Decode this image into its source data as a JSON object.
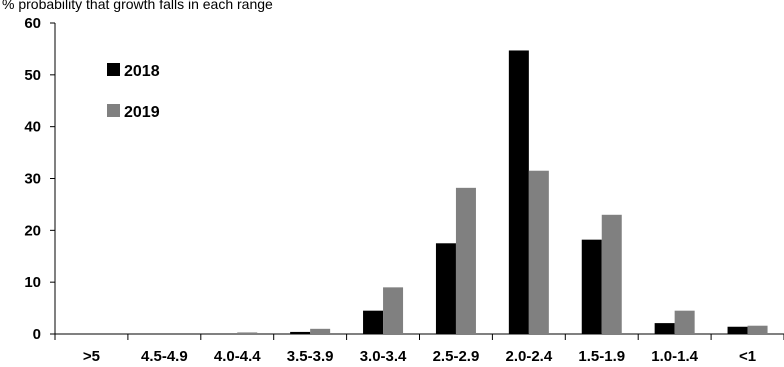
{
  "chart_data": {
    "type": "bar",
    "subtitle": "% probability that growth falls in each range",
    "categories": [
      ">5",
      "4.5-4.9",
      "4.0-4.4",
      "3.5-3.9",
      "3.0-3.4",
      "2.5-2.9",
      "2.0-2.4",
      "1.5-1.9",
      "1.0-1.4",
      "<1"
    ],
    "series": [
      {
        "name": "2018",
        "color": "#000000",
        "values": [
          0,
          0,
          0,
          0.4,
          4.5,
          17.5,
          54.7,
          18.2,
          2.1,
          1.4
        ]
      },
      {
        "name": "2019",
        "color": "#808080",
        "values": [
          0,
          0,
          0.3,
          1.0,
          9.0,
          28.2,
          31.5,
          23.0,
          4.5,
          1.6
        ]
      }
    ],
    "ylim": [
      0,
      60
    ],
    "yticks": [
      0,
      10,
      20,
      30,
      40,
      50,
      60
    ],
    "xlabel": "",
    "ylabel": "",
    "grid": false,
    "legend": "top-left"
  }
}
